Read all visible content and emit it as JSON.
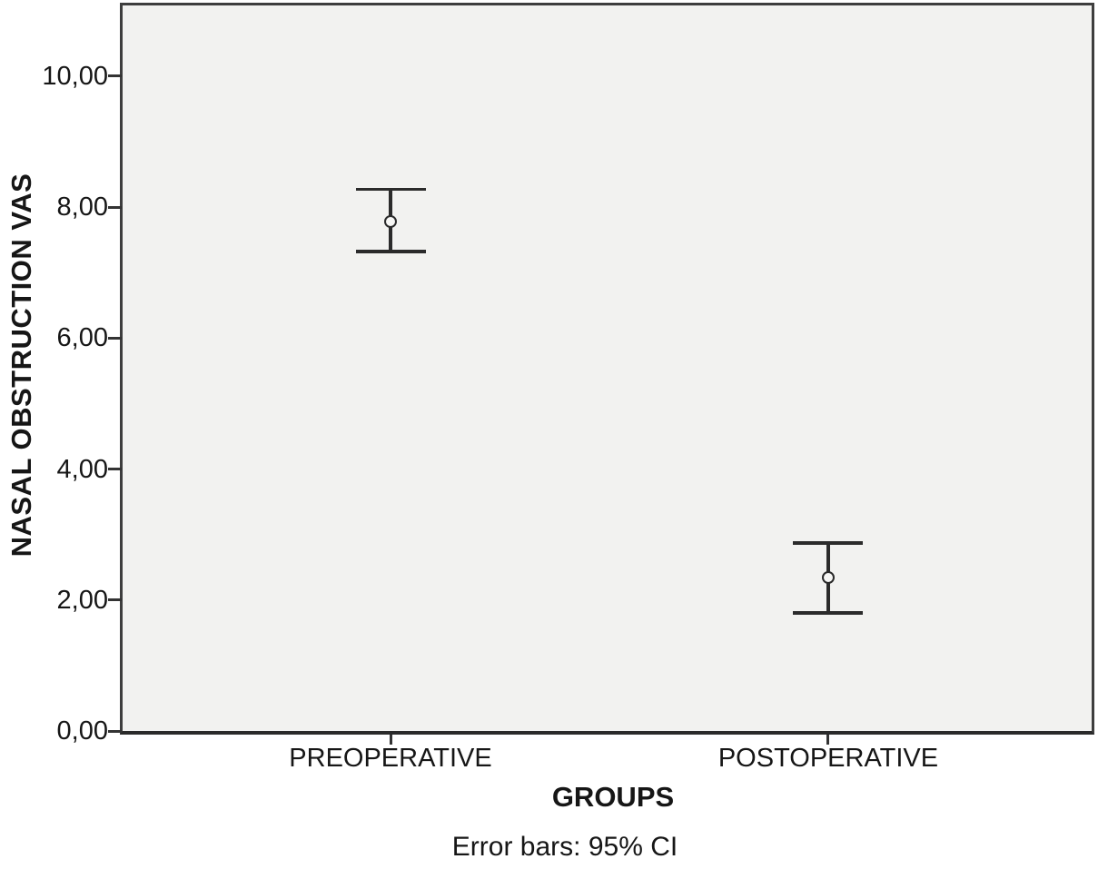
{
  "chart_data": {
    "type": "errorbar",
    "title": "",
    "ylabel": "NASAL OBSTRUCTION VAS",
    "xlabel": "GROUPS",
    "caption": "Error bars: 95% CI",
    "categories": [
      "PREOPERATIVE",
      "POSTOPERATIVE"
    ],
    "series": [
      {
        "means": [
          7.78,
          2.35
        ],
        "ci_low": [
          7.32,
          1.8
        ],
        "ci_high": [
          8.27,
          2.87
        ]
      }
    ],
    "ylim": [
      0,
      11.08
    ],
    "yticks": [
      {
        "value": 0,
        "label": "0,00"
      },
      {
        "value": 2,
        "label": "2,00"
      },
      {
        "value": 4,
        "label": "4,00"
      },
      {
        "value": 6,
        "label": "6,00"
      },
      {
        "value": 8,
        "label": "8,00"
      },
      {
        "value": 10,
        "label": "10,00"
      }
    ],
    "decimal_separator": ",",
    "grid": false,
    "legend_position": "none",
    "marker": "open-circle",
    "colors": {
      "page_bg": "#ffffff",
      "plot_bg": "#f2f2f0",
      "axis": "#3e3e3e",
      "error_bar": "#2b2b2b",
      "text": "#161616"
    }
  }
}
